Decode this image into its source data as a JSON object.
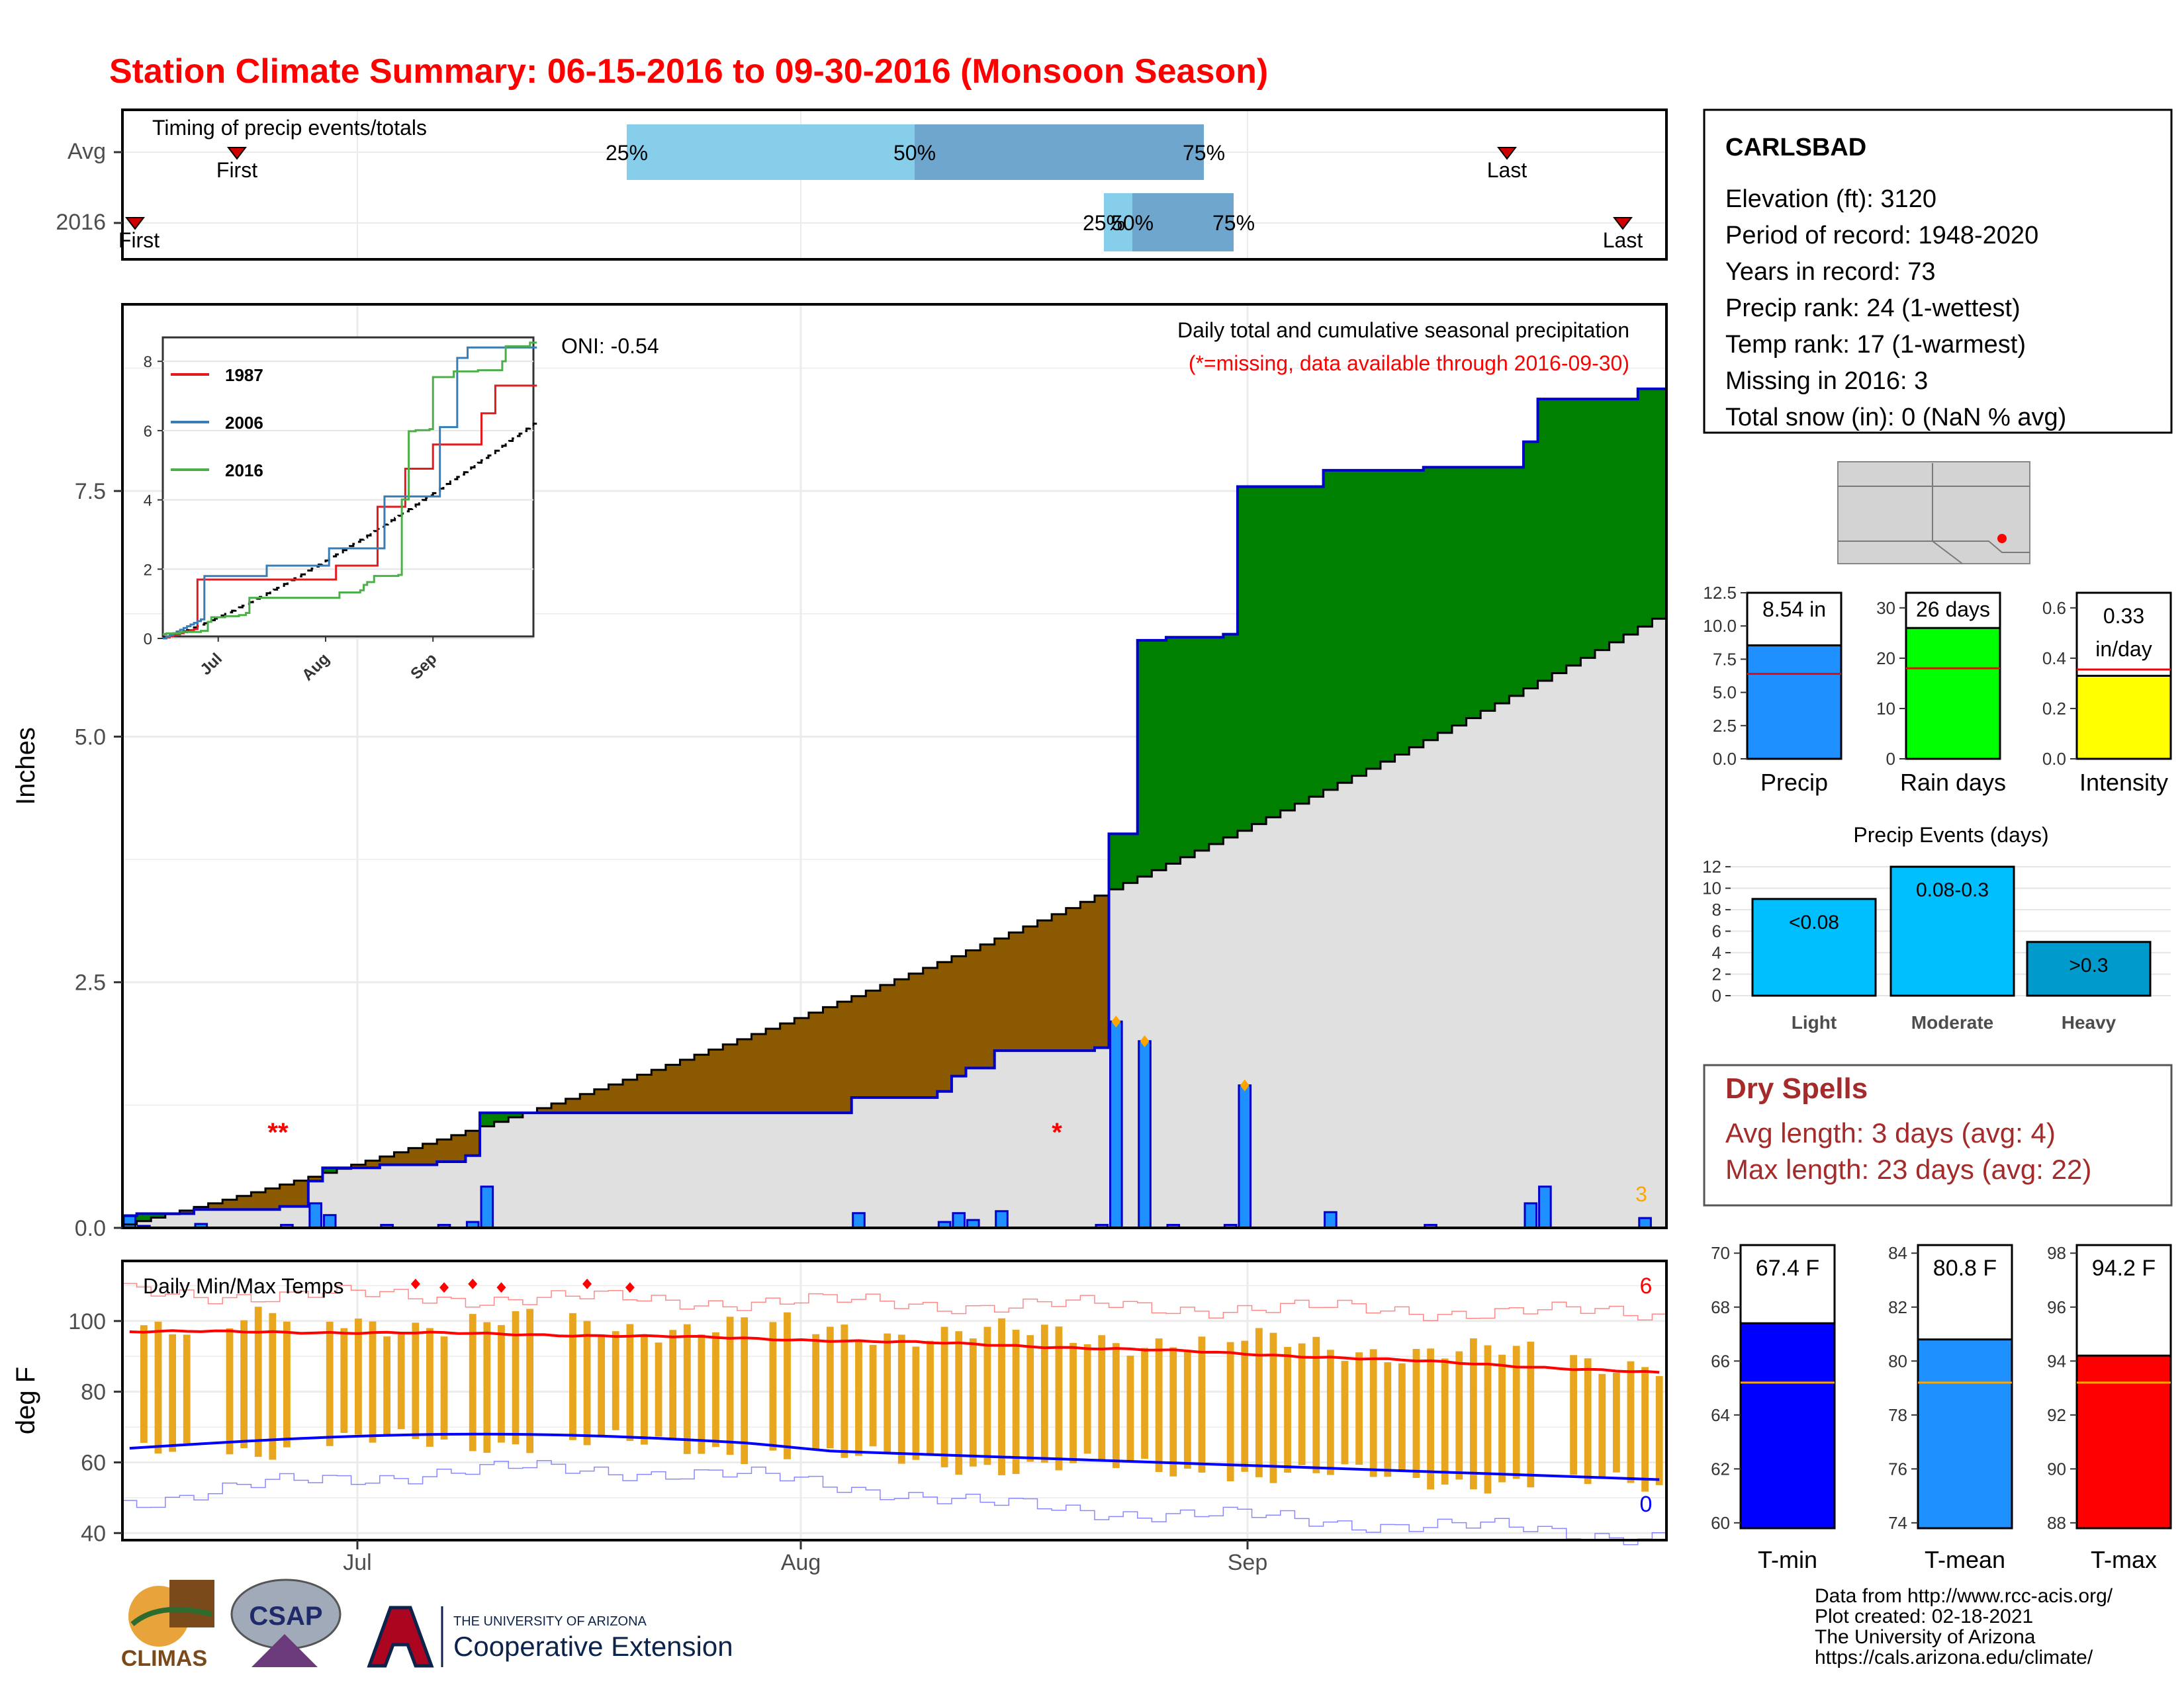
{
  "title": "Station Climate Summary: 06-15-2016 to 09-30-2016 (Monsoon Season)",
  "timing": {
    "label": "Timing of precip events/totals",
    "rows": [
      "Avg",
      "2016"
    ],
    "avg": {
      "first_label": "First",
      "last_label": "Last",
      "p25": "25%",
      "p50": "50%",
      "p75": "75%"
    },
    "y2016": {
      "first_label": "First",
      "last_label": "Last",
      "p25": "25%",
      "p50": "50%",
      "p75": "75%"
    }
  },
  "precip": {
    "ylabel": "Inches",
    "ticks": [
      "0.0",
      "2.5",
      "5.0",
      "7.5"
    ],
    "header1": "Daily total and cumulative seasonal precipitation",
    "header2": "(*=missing, data available through 2016-09-30)",
    "oni": "ONI: -0.54",
    "missing_marks": [
      "**",
      "*"
    ],
    "missing_count": "3"
  },
  "inset": {
    "legend": [
      "1987",
      "2006",
      "2016"
    ],
    "colors": [
      "#e41a1c",
      "#377eb8",
      "#4daf4a"
    ],
    "yticks": [
      "0",
      "2",
      "4",
      "6",
      "8"
    ],
    "xticks": [
      "Jul",
      "Aug",
      "Sep"
    ]
  },
  "temps": {
    "label": "Daily Min/Max Temps",
    "ylabel": "deg F",
    "ticks": [
      "40",
      "60",
      "80",
      "100"
    ],
    "count_hot": "6",
    "count_cold": "0"
  },
  "xaxis": [
    "Jul",
    "Aug",
    "Sep"
  ],
  "station": {
    "name": "CARLSBAD",
    "lines": [
      "Elevation (ft): 3120",
      "Period of record: 1948-2020",
      "Years in record: 73",
      "Precip rank: 24 (1-wettest)",
      "Temp rank: 17 (1-warmest)",
      "Missing in 2016: 3",
      "Total snow (in): 0 (NaN % avg)"
    ]
  },
  "mini_bars": [
    {
      "label": "Precip",
      "value_text": "8.54 in",
      "value": 8.54,
      "avg": 6.4,
      "max": 12.5,
      "ticks": [
        "0.0",
        "2.5",
        "5.0",
        "7.5",
        "10.0",
        "12.5"
      ],
      "color": "#1e90ff"
    },
    {
      "label": "Rain days",
      "value_text": "26 days",
      "value": 26,
      "avg": 18,
      "max": 33,
      "ticks": [
        "0",
        "10",
        "20",
        "30"
      ],
      "color": "#00ff00"
    },
    {
      "label": "Intensity",
      "value_text": "0.33 in/day",
      "value": 0.33,
      "avg": 0.355,
      "max": 0.66,
      "ticks": [
        "0.0",
        "0.2",
        "0.4",
        "0.6"
      ],
      "color": "#ffff00"
    }
  ],
  "events": {
    "title": "Precip Events (days)",
    "ticks": [
      "0",
      "2",
      "4",
      "6",
      "8",
      "10",
      "12"
    ],
    "categories": [
      "Light",
      "Moderate",
      "Heavy"
    ],
    "labels": [
      "<0.08",
      "0.08-0.3",
      ">0.3"
    ],
    "values": [
      9,
      12,
      5
    ],
    "colors": [
      "#00bfff",
      "#00bfff",
      "#009acd"
    ]
  },
  "dry_spells": {
    "title": "Dry Spells",
    "avg_line": "Avg length: 3 days (avg: 4)",
    "max_line": "Max length: 23 days (avg: 22)"
  },
  "temp_bars": [
    {
      "label": "T-min",
      "value_text": "67.4 F",
      "value": 67.4,
      "avg": 65.2,
      "min": 59.8,
      "max": 70.3,
      "ticks": [
        "60",
        "62",
        "64",
        "66",
        "68",
        "70"
      ],
      "color": "#0000ff"
    },
    {
      "label": "T-mean",
      "value_text": "80.8 F",
      "value": 80.8,
      "avg": 79.2,
      "min": 73.8,
      "max": 84.3,
      "ticks": [
        "74",
        "76",
        "78",
        "80",
        "82",
        "84"
      ],
      "color": "#1e90ff"
    },
    {
      "label": "T-max",
      "value_text": "94.2 F",
      "value": 94.2,
      "avg": 93.2,
      "min": 87.8,
      "max": 98.3,
      "ticks": [
        "88",
        "90",
        "92",
        "94",
        "96",
        "98"
      ],
      "color": "#ff0000"
    }
  ],
  "footer": {
    "lines": [
      "Data from http://www.rcc-acis.org/",
      "Plot created: 02-18-2021",
      "The University of Arizona",
      "https://cals.arizona.edu/climate/"
    ],
    "logo_climas": "CLIMAS",
    "logo_csap": "CSAP",
    "ua_small": "THE UNIVERSITY OF ARIZONA",
    "ua_big": "Cooperative Extension"
  },
  "chart_data": [
    {
      "type": "area",
      "title": "Daily total and cumulative seasonal precipitation",
      "ylabel": "Inches",
      "ylim": [
        0,
        9.4
      ],
      "x_range": [
        "2016-06-15",
        "2016-09-30"
      ],
      "daily_precip": [
        {
          "date": "2016-06-15",
          "value": 0.12
        },
        {
          "date": "2016-06-16",
          "value": 0.02
        },
        {
          "date": "2016-06-20",
          "value": 0.04
        },
        {
          "date": "2016-06-26",
          "value": 0.03
        },
        {
          "date": "2016-06-28",
          "value": 0.25
        },
        {
          "date": "2016-06-29",
          "value": 0.13
        },
        {
          "date": "2016-07-03",
          "value": 0.03
        },
        {
          "date": "2016-07-07",
          "value": 0.03
        },
        {
          "date": "2016-07-09",
          "value": 0.06
        },
        {
          "date": "2016-07-10",
          "value": 0.42
        },
        {
          "date": "2016-08-05",
          "value": 0.15
        },
        {
          "date": "2016-08-11",
          "value": 0.06
        },
        {
          "date": "2016-08-12",
          "value": 0.15
        },
        {
          "date": "2016-08-13",
          "value": 0.08
        },
        {
          "date": "2016-08-15",
          "value": 0.17
        },
        {
          "date": "2016-08-22",
          "value": 0.03
        },
        {
          "date": "2016-08-23",
          "value": 2.1
        },
        {
          "date": "2016-08-25",
          "value": 1.9
        },
        {
          "date": "2016-08-27",
          "value": 0.03
        },
        {
          "date": "2016-08-31",
          "value": 0.03
        },
        {
          "date": "2016-09-01",
          "value": 1.45
        },
        {
          "date": "2016-09-07",
          "value": 0.16
        },
        {
          "date": "2016-09-14",
          "value": 0.03
        },
        {
          "date": "2016-09-21",
          "value": 0.25
        },
        {
          "date": "2016-09-22",
          "value": 0.42
        },
        {
          "date": "2016-09-29",
          "value": 0.1
        }
      ],
      "cumulative_2016": [
        {
          "date": "2016-06-15",
          "value": 0.12
        },
        {
          "date": "2016-06-16",
          "value": 0.14
        },
        {
          "date": "2016-06-28",
          "value": 0.25
        },
        {
          "date": "2016-06-29",
          "value": 0.39
        },
        {
          "date": "2016-07-10",
          "value": 1.05
        },
        {
          "date": "2016-08-05",
          "value": 1.2
        },
        {
          "date": "2016-08-11",
          "value": 1.26
        },
        {
          "date": "2016-08-12",
          "value": 1.41
        },
        {
          "date": "2016-08-13",
          "value": 1.55
        },
        {
          "date": "2016-08-15",
          "value": 1.79
        },
        {
          "date": "2016-08-23",
          "value": 3.95
        },
        {
          "date": "2016-08-25",
          "value": 5.85
        },
        {
          "date": "2016-09-01",
          "value": 7.55
        },
        {
          "date": "2016-09-07",
          "value": 7.76
        },
        {
          "date": "2016-09-14",
          "value": 7.79
        },
        {
          "date": "2016-09-21",
          "value": 8.04
        },
        {
          "date": "2016-09-22",
          "value": 8.46
        },
        {
          "date": "2016-09-29",
          "value": 8.54
        }
      ],
      "cumulative_avg_end": 6.2,
      "colors": {
        "above_avg": "#008000",
        "below_avg": "#8b5a00",
        "avg_fill": "#e0e0e0"
      }
    },
    {
      "type": "line",
      "title": "",
      "series": [
        {
          "name": "1987",
          "end_value": 7.3
        },
        {
          "name": "2006",
          "end_value": 8.4
        },
        {
          "name": "2016",
          "end_value": 8.54
        }
      ],
      "ylim": [
        0,
        8.5
      ]
    },
    {
      "type": "line",
      "title": "Daily Min/Max Temps",
      "ylabel": "deg F",
      "ylim": [
        38,
        117
      ],
      "series": [
        {
          "name": "",
          "start": 97,
          "end": 85
        },
        {
          "name": "",
          "start": 64,
          "end": 55
        }
      ]
    }
  ]
}
